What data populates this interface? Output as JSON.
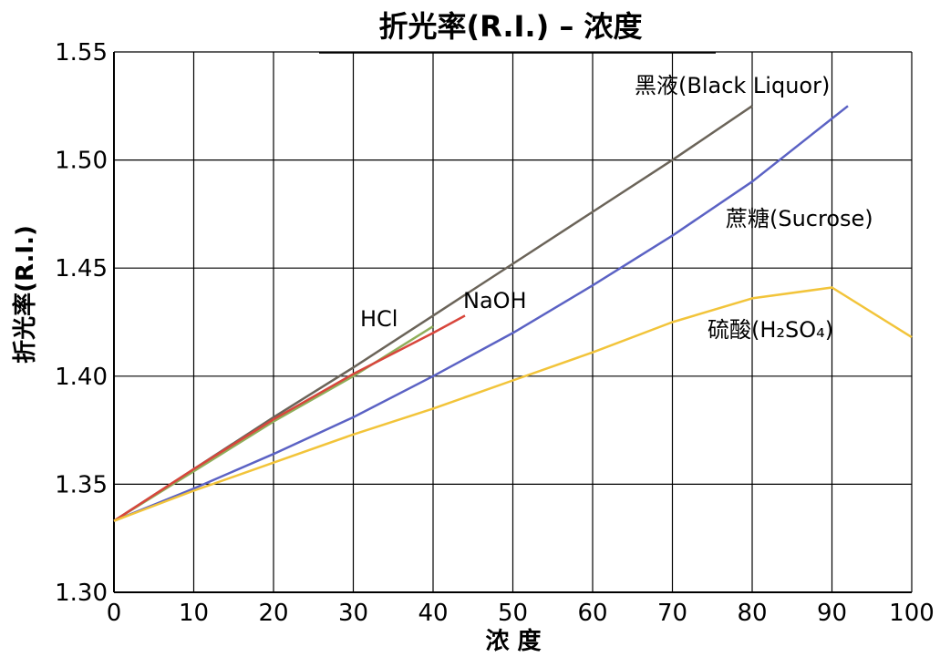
{
  "chart_data": {
    "type": "line",
    "title": "折光率(R.I.) – 浓度",
    "xlabel": "浓 度",
    "ylabel": "折光率(R.I.)",
    "xlim": [
      0,
      100
    ],
    "ylim": [
      1.3,
      1.55
    ],
    "xticks": [
      "0",
      "10",
      "20",
      "30",
      "40",
      "50",
      "60",
      "70",
      "80",
      "90",
      "100"
    ],
    "yticks": [
      "1.30",
      "1.35",
      "1.40",
      "1.45",
      "1.50",
      "1.55"
    ],
    "grid": true,
    "series": [
      {
        "name": "黑液(Black Liquor)",
        "color": "#6b6459",
        "x": [
          0,
          10,
          20,
          30,
          40,
          50,
          60,
          70,
          80
        ],
        "y": [
          1.333,
          1.357,
          1.381,
          1.404,
          1.428,
          1.452,
          1.476,
          1.5,
          1.525
        ]
      },
      {
        "name": "蔗糖(Sucrose)",
        "color": "#5b62c4",
        "x": [
          0,
          10,
          20,
          30,
          40,
          50,
          60,
          70,
          80,
          92
        ],
        "y": [
          1.333,
          1.348,
          1.364,
          1.381,
          1.4,
          1.42,
          1.442,
          1.465,
          1.49,
          1.525
        ]
      },
      {
        "name": "HCl",
        "color": "#8fae5a",
        "x": [
          0,
          10,
          20,
          30,
          40
        ],
        "y": [
          1.333,
          1.356,
          1.379,
          1.4,
          1.423
        ]
      },
      {
        "name": "NaOH",
        "color": "#d8463c",
        "x": [
          0,
          10,
          20,
          30,
          40,
          44
        ],
        "y": [
          1.333,
          1.357,
          1.38,
          1.401,
          1.42,
          1.428
        ]
      },
      {
        "name": "硫酸(H2SO4)",
        "color": "#f2c43a",
        "x": [
          0,
          10,
          20,
          30,
          40,
          50,
          60,
          70,
          80,
          90,
          100
        ],
        "y": [
          1.333,
          1.347,
          1.36,
          1.373,
          1.385,
          1.398,
          1.411,
          1.425,
          1.436,
          1.441,
          1.418
        ]
      }
    ],
    "annotations": [
      {
        "text": "黑液(Black Liquor)"
      },
      {
        "text": "蔗糖(Sucrose)"
      },
      {
        "text": "HCl"
      },
      {
        "text": "NaOH"
      },
      {
        "text": "硫酸(H₂SO₄)"
      }
    ]
  }
}
